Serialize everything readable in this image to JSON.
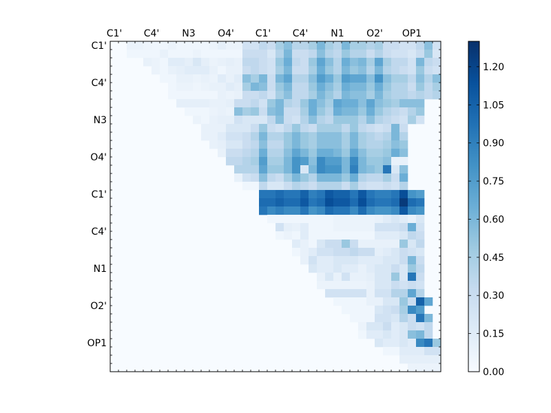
{
  "chart_data": {
    "type": "heatmap",
    "title": "",
    "xlabel": "",
    "ylabel": "",
    "grid": false,
    "size": 40,
    "x_tick_labels": [
      "C1'",
      "C4'",
      "N3",
      "O4'",
      "C1'",
      "C4'",
      "N1",
      "O2'",
      "OP1"
    ],
    "y_tick_labels": [
      "C1'",
      "C4'",
      "N3",
      "O4'",
      "C1'",
      "C4'",
      "N1",
      "O2'",
      "OP1"
    ],
    "tick_positions": [
      0.5,
      5,
      9.5,
      14,
      18.5,
      23,
      27.5,
      32,
      36.5
    ],
    "colorbar": {
      "colormap": "Blues",
      "range": [
        0,
        1.3
      ],
      "ticks": [
        0.0,
        0.15,
        0.3,
        0.45,
        0.6,
        0.75,
        0.9,
        1.05,
        1.2
      ],
      "tick_labels": [
        "0.00",
        "0.15",
        "0.30",
        "0.45",
        "0.60",
        "0.75",
        "0.90",
        "1.05",
        "1.20"
      ]
    },
    "values_description": "",
    "rows": [
      {
        "row": 0,
        "start": 2,
        "values": [
          0.08,
          0.08,
          0.06,
          0.05,
          0.05,
          0.08,
          0.05,
          0.05,
          0.05,
          0.05,
          0.08,
          0.12,
          0.08,
          0.08,
          0.25,
          0.25,
          0.35,
          0.3,
          0.45,
          0.55,
          0.38,
          0.38,
          0.45,
          0.6,
          0.45,
          0.38,
          0.6,
          0.45,
          0.45,
          0.4,
          0.45,
          0.3,
          0.3,
          0.25,
          0.25,
          0.35,
          0.55,
          0.25
        ]
      },
      {
        "row": 1,
        "start": 2,
        "values": [
          0.05,
          0.05,
          0.05,
          0.05,
          0.1,
          0.05,
          0.05,
          0.05,
          0.08,
          0.05,
          0.05,
          0.05,
          0.05,
          0.05,
          0.3,
          0.3,
          0.3,
          0.2,
          0.4,
          0.6,
          0.3,
          0.3,
          0.35,
          0.55,
          0.4,
          0.35,
          0.5,
          0.4,
          0.4,
          0.3,
          0.4,
          0.3,
          0.25,
          0.25,
          0.2,
          0.3,
          0.5,
          0.2
        ]
      },
      {
        "row": 2,
        "start": 4,
        "values": [
          0.1,
          0.08,
          0.05,
          0.15,
          0.15,
          0.12,
          0.2,
          0.12,
          0.08,
          0.1,
          0.12,
          0.1,
          0.35,
          0.35,
          0.3,
          0.25,
          0.5,
          0.65,
          0.35,
          0.3,
          0.5,
          0.7,
          0.55,
          0.4,
          0.65,
          0.55,
          0.6,
          0.45,
          0.7,
          0.45,
          0.35,
          0.35,
          0.25,
          0.6,
          0.35,
          0.3
        ]
      },
      {
        "row": 3,
        "start": 5,
        "values": [
          0.08,
          0.05,
          0.1,
          0.12,
          0.15,
          0.15,
          0.15,
          0.1,
          0.05,
          0.1,
          0.1,
          0.3,
          0.35,
          0.3,
          0.25,
          0.45,
          0.6,
          0.3,
          0.3,
          0.45,
          0.65,
          0.5,
          0.4,
          0.6,
          0.5,
          0.55,
          0.4,
          0.6,
          0.4,
          0.35,
          0.3,
          0.25,
          0.5,
          0.3,
          0.25
        ]
      },
      {
        "row": 4,
        "start": 6,
        "values": [
          0.05,
          0.05,
          0.1,
          0.1,
          0.08,
          0.1,
          0.08,
          0.15,
          0.1,
          0.15,
          0.55,
          0.45,
          0.6,
          0.3,
          0.6,
          0.7,
          0.4,
          0.4,
          0.55,
          0.75,
          0.65,
          0.5,
          0.75,
          0.7,
          0.7,
          0.55,
          0.8,
          0.55,
          0.45,
          0.45,
          0.35,
          0.55,
          0.4,
          0.55
        ]
      },
      {
        "row": 5,
        "start": 7,
        "values": [
          0.05,
          0.08,
          0.08,
          0.06,
          0.08,
          0.1,
          0.1,
          0.15,
          0.12,
          0.45,
          0.6,
          0.55,
          0.3,
          0.5,
          0.6,
          0.35,
          0.35,
          0.5,
          0.65,
          0.55,
          0.45,
          0.65,
          0.6,
          0.6,
          0.5,
          0.65,
          0.5,
          0.4,
          0.4,
          0.3,
          0.5,
          0.35,
          0.45
        ]
      },
      {
        "row": 6,
        "start": 7,
        "values": [
          0.05,
          0.05,
          0.05,
          0.05,
          0.05,
          0.05,
          0.1,
          0.08,
          0.1,
          0.3,
          0.3,
          0.35,
          0.25,
          0.45,
          0.55,
          0.35,
          0.35,
          0.45,
          0.6,
          0.5,
          0.4,
          0.6,
          0.55,
          0.55,
          0.45,
          0.6,
          0.45,
          0.4,
          0.4,
          0.35,
          0.4,
          0.35,
          0.4
        ]
      },
      {
        "row": 7,
        "start": 8,
        "values": [
          0.12,
          0.12,
          0.12,
          0.12,
          0.1,
          0.1,
          0.12,
          0.3,
          0.3,
          0.35,
          0.25,
          0.5,
          0.6,
          0.4,
          0.35,
          0.5,
          0.65,
          0.55,
          0.45,
          0.7,
          0.65,
          0.65,
          0.55,
          0.7,
          0.55,
          0.5,
          0.45,
          0.55,
          0.55,
          0.55
        ]
      },
      {
        "row": 8,
        "start": 9,
        "values": [
          0.05,
          0.05,
          0.05,
          0.08,
          0.1,
          0.08,
          0.55,
          0.45,
          0.5,
          0.3,
          0.55,
          0.6,
          0.3,
          0.3,
          0.45,
          0.65,
          0.5,
          0.4,
          0.65,
          0.6,
          0.6,
          0.5,
          0.65,
          0.5,
          0.4,
          0.35,
          0.3,
          0.4,
          0.5
        ]
      },
      {
        "row": 9,
        "start": 10,
        "values": [
          0.08,
          0.05,
          0.1,
          0.12,
          0.12,
          0.25,
          0.2,
          0.2,
          0.2,
          0.35,
          0.55,
          0.3,
          0.25,
          0.4,
          0.55,
          0.4,
          0.35,
          0.5,
          0.5,
          0.5,
          0.4,
          0.55,
          0.4,
          0.35,
          0.3,
          0.25,
          0.45,
          0.25
        ]
      },
      {
        "row": 10,
        "start": 11,
        "values": [
          0.1,
          0.1,
          0.1,
          0.2,
          0.2,
          0.2,
          0.3,
          0.5,
          0.3,
          0.25,
          0.35,
          0.5,
          0.35,
          0.3,
          0.45,
          0.45,
          0.45,
          0.35,
          0.5,
          0.35,
          0.3,
          0.25,
          0.3,
          0.6,
          0.3
        ]
      },
      {
        "row": 11,
        "start": 11,
        "values": [
          0.1,
          0.1,
          0.15,
          0.25,
          0.25,
          0.3,
          0.4,
          0.6,
          0.4,
          0.4,
          0.5,
          0.6,
          0.5,
          0.45,
          0.55,
          0.55,
          0.55,
          0.45,
          0.6,
          0.45,
          0.4,
          0.35,
          0.4,
          0.6,
          0.4
        ]
      },
      {
        "row": 12,
        "start": 12,
        "values": [
          0.1,
          0.12,
          0.2,
          0.2,
          0.3,
          0.35,
          0.55,
          0.35,
          0.35,
          0.5,
          0.6,
          0.5,
          0.45,
          0.55,
          0.55,
          0.55,
          0.45,
          0.6,
          0.45,
          0.4,
          0.4,
          0.45,
          0.55,
          0.5
        ]
      },
      {
        "row": 13,
        "start": 13,
        "values": [
          0.1,
          0.3,
          0.3,
          0.35,
          0.4,
          0.65,
          0.4,
          0.4,
          0.55,
          0.7,
          0.6,
          0.5,
          0.65,
          0.65,
          0.6,
          0.5,
          0.7,
          0.55,
          0.45,
          0.45,
          0.5,
          0.65,
          0.55
        ]
      },
      {
        "row": 14,
        "start": 14,
        "values": [
          0.35,
          0.35,
          0.4,
          0.45,
          0.75,
          0.45,
          0.45,
          0.6,
          0.8,
          0.75,
          0.55,
          0.85,
          0.75,
          0.75,
          0.6,
          0.85,
          0.6,
          0.5,
          0.5,
          0.55,
          0.1,
          0.1
        ]
      },
      {
        "row": 15,
        "start": 15,
        "values": [
          0.4,
          0.4,
          0.4,
          0.7,
          0.5,
          0.5,
          0.6,
          0.8,
          0.2,
          0.6,
          0.85,
          0.8,
          0.8,
          0.6,
          0.9,
          0.6,
          0.55,
          0.5,
          0.95,
          0.2,
          0.55
        ]
      },
      {
        "row": 16,
        "start": 15,
        "values": [
          0.1,
          0.25,
          0.3,
          0.55,
          0.35,
          0.3,
          0.45,
          0.6,
          0.5,
          0.4,
          0.6,
          0.6,
          0.6,
          0.5,
          0.65,
          0.4,
          0.35,
          0.35,
          0.45,
          0.3,
          0.65
        ]
      },
      {
        "row": 17,
        "start": 16,
        "values": [
          0.05,
          0.05,
          0.35,
          0.2,
          0.2,
          0.3,
          0.4,
          0.35,
          0.3,
          0.4,
          0.4,
          0.4,
          0.3,
          0.45,
          0.3,
          0.25,
          0.25,
          0.3,
          0.25,
          0.4
        ]
      },
      {
        "row": 18,
        "start": 18,
        "values": [
          0.95,
          0.95,
          1.0,
          0.95,
          0.95,
          1.05,
          0.9,
          0.95,
          1.1,
          1.05,
          1.05,
          0.95,
          1.1,
          0.95,
          0.9,
          0.9,
          0.95,
          1.15,
          0.8,
          0.75
        ]
      },
      {
        "row": 19,
        "start": 18,
        "values": [
          1.0,
          1.0,
          1.05,
          1.0,
          1.0,
          1.1,
          0.95,
          1.0,
          1.15,
          1.1,
          1.1,
          1.0,
          1.15,
          1.0,
          0.95,
          0.95,
          1.0,
          1.25,
          1.0,
          0.95
        ]
      },
      {
        "row": 20,
        "start": 18,
        "values": [
          0.95,
          0.85,
          0.9,
          0.85,
          0.85,
          0.95,
          0.8,
          0.85,
          1.0,
          0.95,
          0.95,
          0.85,
          1.0,
          0.85,
          0.8,
          0.8,
          0.85,
          1.1,
          0.85,
          0.8
        ]
      },
      {
        "row": 21,
        "start": 19,
        "values": [
          0.05,
          0.05,
          0.05,
          0.05,
          0.05,
          0.05,
          0.05,
          0.05,
          0.08,
          0.08,
          0.08,
          0.08,
          0.08,
          0.1,
          0.15,
          0.2,
          0.15,
          0.1,
          0.2
        ]
      },
      {
        "row": 22,
        "start": 20,
        "values": [
          0.25,
          0.12,
          0.1,
          0.15,
          0.05,
          0.05,
          0.05,
          0.08,
          0.08,
          0.08,
          0.08,
          0.08,
          0.25,
          0.25,
          0.25,
          0.3,
          0.65,
          0.25
        ]
      },
      {
        "row": 23,
        "start": 20,
        "values": [
          0.05,
          0.08,
          0.05,
          0.15,
          0.05,
          0.05,
          0.05,
          0.05,
          0.05,
          0.05,
          0.05,
          0.05,
          0.15,
          0.15,
          0.15,
          0.2,
          0.35,
          0.3
        ]
      },
      {
        "row": 24,
        "start": 22,
        "values": [
          0.15,
          0.1,
          0.05,
          0.2,
          0.3,
          0.3,
          0.5,
          0.3,
          0.1,
          0.1,
          0.1,
          0.1,
          0.1,
          0.5,
          0.2,
          0.35
        ]
      },
      {
        "row": 25,
        "start": 22,
        "values": [
          0.05,
          0.1,
          0.15,
          0.25,
          0.25,
          0.3,
          0.3,
          0.35,
          0.3,
          0.3,
          0.12,
          0.15,
          0.2,
          0.3,
          0.25,
          0.2
        ]
      },
      {
        "row": 26,
        "start": 23,
        "values": [
          0.1,
          0.25,
          0.15,
          0.15,
          0.2,
          0.2,
          0.2,
          0.15,
          0.15,
          0.15,
          0.2,
          0.2,
          0.3,
          0.6,
          0.3
        ]
      },
      {
        "row": 27,
        "start": 24,
        "values": [
          0.2,
          0.15,
          0.15,
          0.2,
          0.15,
          0.15,
          0.1,
          0.15,
          0.2,
          0.2,
          0.3,
          0.2,
          0.5,
          0.35
        ]
      },
      {
        "row": 28,
        "start": 25,
        "values": [
          0.1,
          0.2,
          0.1,
          0.25,
          0.1,
          0.1,
          0.12,
          0.2,
          0.2,
          0.5,
          0.2,
          0.95,
          0.3
        ]
      },
      {
        "row": 29,
        "start": 25,
        "values": [
          0.08,
          0.08,
          0.08,
          0.08,
          0.08,
          0.08,
          0.1,
          0.2,
          0.2,
          0.3,
          0.25,
          0.3,
          0.25
        ]
      },
      {
        "row": 30,
        "start": 26,
        "values": [
          0.25,
          0.25,
          0.25,
          0.25,
          0.25,
          0.1,
          0.25,
          0.25,
          0.4,
          0.4,
          0.7,
          0.4
        ]
      },
      {
        "row": 31,
        "start": 27,
        "values": [
          0.05,
          0.05,
          0.05,
          0.05,
          0.1,
          0.1,
          0.2,
          0.2,
          0.5,
          0.3,
          1.05,
          0.7
        ]
      },
      {
        "row": 32,
        "start": 28,
        "values": [
          0.05,
          0.05,
          0.05,
          0.05,
          0.2,
          0.25,
          0.3,
          0.45,
          0.85,
          0.75
        ]
      },
      {
        "row": 33,
        "start": 29,
        "values": [
          0.05,
          0.05,
          0.05,
          0.25,
          0.25,
          0.2,
          0.4,
          0.3,
          0.95,
          0.6
        ]
      },
      {
        "row": 34,
        "start": 30,
        "values": [
          0.08,
          0.2,
          0.2,
          0.3,
          0.15,
          0.2,
          0.3,
          0.25,
          0.35
        ]
      },
      {
        "row": 35,
        "start": 30,
        "values": [
          0.05,
          0.15,
          0.15,
          0.2,
          0.15,
          0.2,
          0.55,
          0.6,
          0.35
        ]
      },
      {
        "row": 36,
        "start": 32,
        "values": [
          0.2,
          0.15,
          0.15,
          0.2,
          0.15,
          0.85,
          0.95,
          0.5
        ]
      },
      {
        "row": 37,
        "start": 33,
        "values": [
          0.05,
          0.05,
          0.15,
          0.15,
          0.15,
          0.25,
          0.25
        ]
      },
      {
        "row": 38,
        "start": 35,
        "values": [
          0.12,
          0.12,
          0.12,
          0.12,
          0.12
        ]
      },
      {
        "row": 39,
        "start": 36,
        "values": [
          0.08,
          0.08,
          0.08,
          0.08
        ]
      }
    ]
  },
  "colors": {
    "background": "#ffffff",
    "axis": "#000000",
    "colormap_stops": [
      "#f7fbff",
      "#deebf7",
      "#c6dbef",
      "#9ecae1",
      "#6baed6",
      "#4292c6",
      "#2171b5",
      "#08519c",
      "#08306b"
    ]
  }
}
